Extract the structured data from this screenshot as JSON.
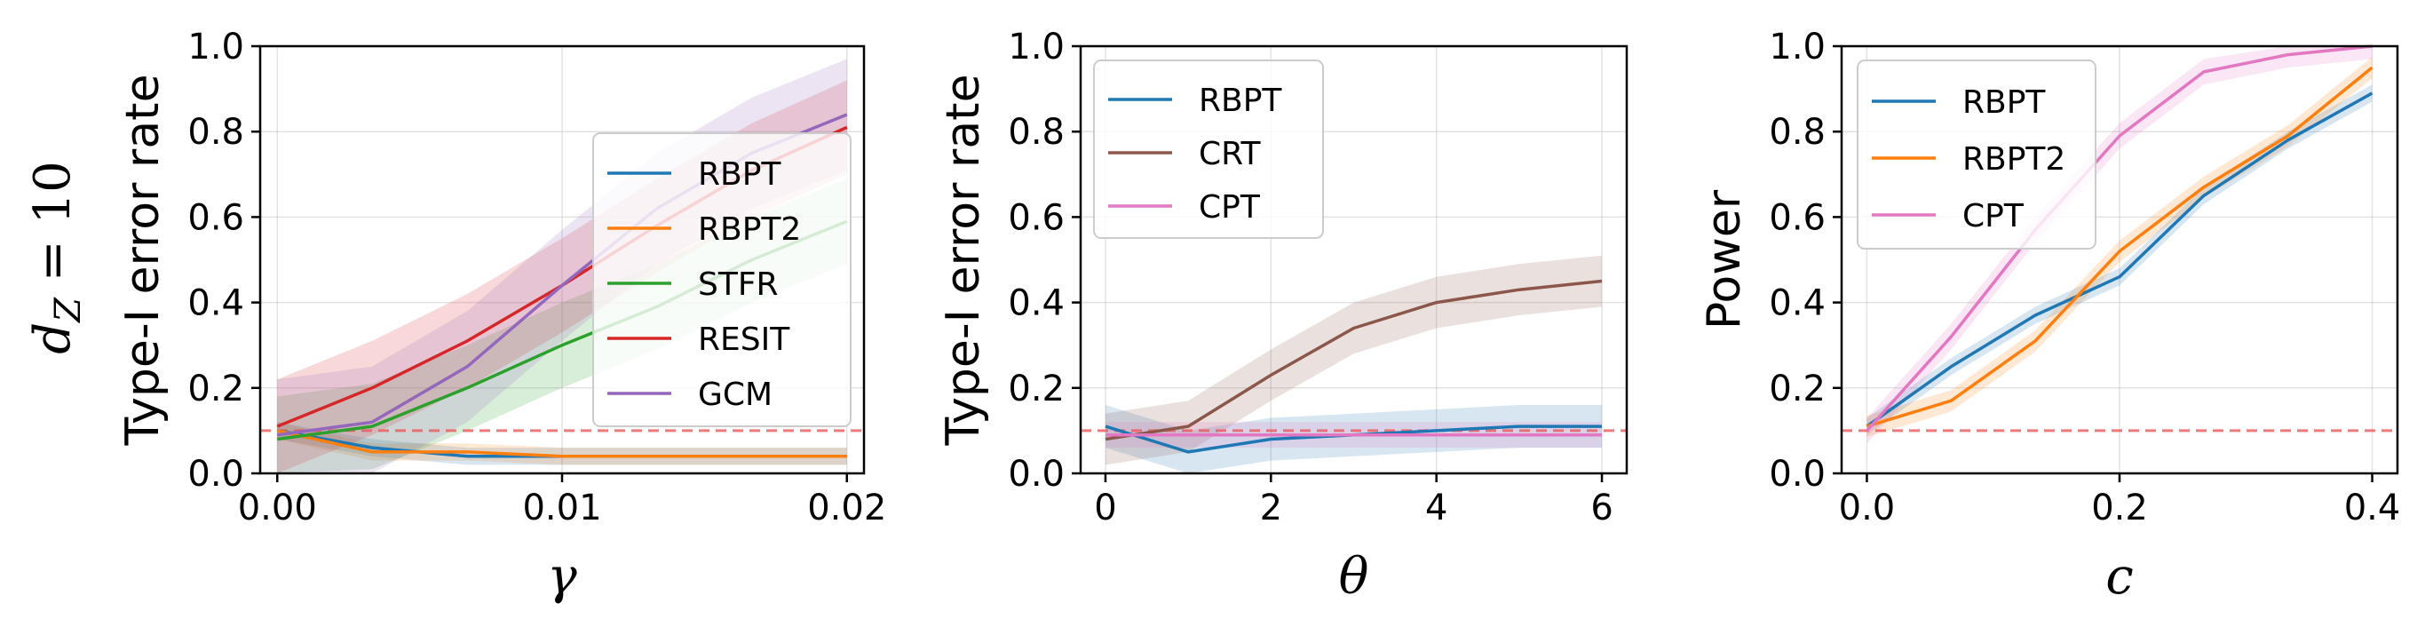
{
  "row_label": "d_Z = 10",
  "chart_data": [
    {
      "type": "line",
      "xlabel": "γ",
      "ylabel": "Type-I error rate",
      "xlim": [
        -0.0006,
        0.0206
      ],
      "ylim": [
        0,
        1
      ],
      "xticks": [
        0,
        0.01,
        0.02
      ],
      "xtick_labels": [
        "0.00",
        "0.01",
        "0.02"
      ],
      "yticks": [
        0,
        0.2,
        0.4,
        0.6,
        0.8,
        1.0
      ],
      "ytick_labels": [
        "0.0",
        "0.2",
        "0.4",
        "0.6",
        "0.8",
        "1.0"
      ],
      "grid": true,
      "legend_position": "center-right",
      "reference_line": 0.1,
      "x": [
        0,
        0.00333,
        0.00667,
        0.01,
        0.01333,
        0.01667,
        0.02
      ],
      "series": [
        {
          "name": "RBPT",
          "color": "#1f77b4",
          "values": [
            0.1,
            0.06,
            0.04,
            0.04,
            0.04,
            0.04,
            0.04
          ],
          "band": 0.02
        },
        {
          "name": "RBPT2",
          "color": "#ff7f0e",
          "values": [
            0.1,
            0.05,
            0.05,
            0.04,
            0.04,
            0.04,
            0.04
          ],
          "band": 0.02
        },
        {
          "name": "STFR",
          "color": "#2ca02c",
          "values": [
            0.08,
            0.11,
            0.2,
            0.3,
            0.39,
            0.5,
            0.59
          ],
          "band": 0.1
        },
        {
          "name": "RESIT",
          "color": "#d62728",
          "values": [
            0.11,
            0.2,
            0.31,
            0.44,
            0.58,
            0.71,
            0.81
          ],
          "band": 0.11
        },
        {
          "name": "GCM",
          "color": "#9467bd",
          "values": [
            0.09,
            0.12,
            0.25,
            0.44,
            0.62,
            0.75,
            0.84
          ],
          "band": 0.13
        }
      ]
    },
    {
      "type": "line",
      "xlabel": "θ",
      "ylabel": "Type-I error rate",
      "xlim": [
        -0.3,
        6.3
      ],
      "ylim": [
        0,
        1
      ],
      "xticks": [
        0,
        2,
        4,
        6
      ],
      "xtick_labels": [
        "0",
        "2",
        "4",
        "6"
      ],
      "yticks": [
        0,
        0.2,
        0.4,
        0.6,
        0.8,
        1.0
      ],
      "ytick_labels": [
        "0.0",
        "0.2",
        "0.4",
        "0.6",
        "0.8",
        "1.0"
      ],
      "grid": true,
      "legend_position": "top-left",
      "reference_line": 0.1,
      "x": [
        0,
        1,
        2,
        3,
        4,
        5,
        6
      ],
      "series": [
        {
          "name": "RBPT",
          "color": "#1f77b4",
          "values": [
            0.11,
            0.05,
            0.08,
            0.09,
            0.1,
            0.11,
            0.11
          ],
          "band": 0.05
        },
        {
          "name": "CRT",
          "color": "#8c564b",
          "values": [
            0.08,
            0.11,
            0.23,
            0.34,
            0.4,
            0.43,
            0.45
          ],
          "band": 0.06
        },
        {
          "name": "CPT",
          "color": "#e377c2",
          "values": [
            0.09,
            0.09,
            0.09,
            0.09,
            0.09,
            0.09,
            0.09
          ],
          "band": 0.03
        }
      ]
    },
    {
      "type": "line",
      "xlabel": "c",
      "ylabel": "Power",
      "xlim": [
        -0.02,
        0.42
      ],
      "ylim": [
        0,
        1
      ],
      "xticks": [
        0,
        0.2,
        0.4
      ],
      "xtick_labels": [
        "0.0",
        "0.2",
        "0.4"
      ],
      "yticks": [
        0,
        0.2,
        0.4,
        0.6,
        0.8,
        1.0
      ],
      "ytick_labels": [
        "0.0",
        "0.2",
        "0.4",
        "0.6",
        "0.8",
        "1.0"
      ],
      "grid": true,
      "legend_position": "top-left",
      "reference_line": 0.1,
      "x": [
        0,
        0.0667,
        0.1333,
        0.2,
        0.2667,
        0.3333,
        0.4
      ],
      "series": [
        {
          "name": "RBPT",
          "color": "#1f77b4",
          "values": [
            0.11,
            0.25,
            0.37,
            0.46,
            0.65,
            0.78,
            0.89
          ],
          "band": 0.02
        },
        {
          "name": "RBPT2",
          "color": "#ff7f0e",
          "values": [
            0.11,
            0.17,
            0.31,
            0.52,
            0.67,
            0.79,
            0.95
          ],
          "band": 0.025
        },
        {
          "name": "CPT",
          "color": "#e377c2",
          "values": [
            0.1,
            0.32,
            0.57,
            0.79,
            0.94,
            0.98,
            1.0
          ],
          "band": 0.03
        }
      ]
    }
  ]
}
